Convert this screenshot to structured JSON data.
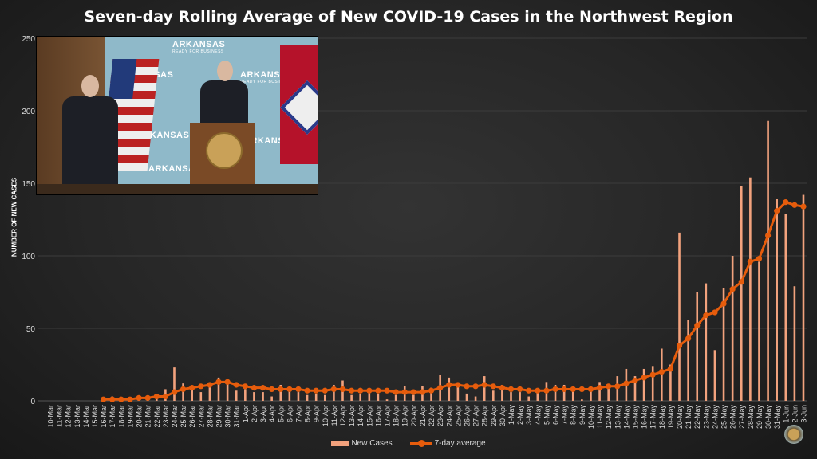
{
  "title": "Seven-day Rolling Average of New COVID-19 Cases in the Northwest Region",
  "video_overlay": {
    "backdrop_brand": "ARKANSAS",
    "backdrop_tagline": "READY FOR BUSINESS"
  },
  "chart_data": {
    "type": "bar+line",
    "title": "Seven-day Rolling Average of New COVID-19 Cases in the Northwest Region",
    "xlabel": "",
    "ylabel": "NUMBER OF NEW CASES",
    "ylim": [
      0,
      250
    ],
    "yticks": [
      0,
      50,
      100,
      150,
      200,
      250
    ],
    "grid": true,
    "legend_position": "bottom",
    "colors": {
      "bars": "#f2a27d",
      "line": "#e65c0c"
    },
    "categories": [
      "10-Mar",
      "11-Mar",
      "12-Mar",
      "13-Mar",
      "14-Mar",
      "15-Mar",
      "16-Mar",
      "17-Mar",
      "18-Mar",
      "19-Mar",
      "20-Mar",
      "21-Mar",
      "22-Mar",
      "23-Mar",
      "24-Mar",
      "25-Mar",
      "26-Mar",
      "27-Mar",
      "28-Mar",
      "29-Mar",
      "30-Mar",
      "31-Mar",
      "1-Apr",
      "2-Apr",
      "3-Apr",
      "4-Apr",
      "5-Apr",
      "6-Apr",
      "7-Apr",
      "8-Apr",
      "9-Apr",
      "10-Apr",
      "11-Apr",
      "12-Apr",
      "13-Apr",
      "14-Apr",
      "15-Apr",
      "16-Apr",
      "17-Apr",
      "18-Apr",
      "19-Apr",
      "20-Apr",
      "21-Apr",
      "22-Apr",
      "23-Apr",
      "24-Apr",
      "25-Apr",
      "26-Apr",
      "27-Apr",
      "28-Apr",
      "29-Apr",
      "30-Apr",
      "1-May",
      "2-May",
      "3-May",
      "4-May",
      "5-May",
      "6-May",
      "7-May",
      "8-May",
      "9-May",
      "10-May",
      "11-May",
      "12-May",
      "13-May",
      "14-May",
      "15-May",
      "16-May",
      "17-May",
      "18-May",
      "19-May",
      "20-May",
      "21-May",
      "22-May",
      "23-May",
      "24-May",
      "25-May",
      "26-May",
      "27-May",
      "28-May",
      "29-May",
      "30-May",
      "31-May",
      "1-Jun",
      "2-Jun",
      "3-Jun"
    ],
    "series": [
      {
        "name": "New Cases",
        "type": "bar",
        "values": [
          0,
          0,
          0,
          0,
          0,
          0,
          2,
          3,
          1,
          1,
          1,
          1,
          2,
          8,
          23,
          12,
          10,
          6,
          10,
          16,
          15,
          7,
          8,
          6,
          6,
          3,
          11,
          9,
          6,
          4,
          5,
          4,
          11,
          14,
          4,
          5,
          8,
          5,
          1,
          4,
          10,
          4,
          10,
          9,
          18,
          16,
          10,
          5,
          3,
          17,
          7,
          11,
          6,
          6,
          3,
          6,
          13,
          11,
          11,
          7,
          1,
          7,
          13,
          11,
          17,
          22,
          17,
          22,
          24,
          36,
          25,
          116,
          56,
          75,
          81,
          35,
          78,
          100,
          148,
          154,
          96,
          193,
          139,
          129,
          79,
          142
        ]
      },
      {
        "name": "7-day average",
        "type": "line",
        "values": [
          null,
          null,
          null,
          null,
          null,
          null,
          1,
          1,
          1,
          1,
          2,
          2,
          3,
          3,
          6,
          8,
          9,
          10,
          11,
          13,
          13,
          11,
          10,
          9,
          9,
          8,
          8,
          8,
          8,
          7,
          7,
          7,
          8,
          8,
          7,
          7,
          7,
          7,
          7,
          6,
          6,
          6,
          6,
          7,
          9,
          11,
          11,
          10,
          10,
          11,
          10,
          9,
          8,
          8,
          7,
          7,
          7,
          8,
          8,
          8,
          8,
          8,
          9,
          10,
          10,
          12,
          14,
          16,
          18,
          20,
          22,
          38,
          43,
          52,
          59,
          61,
          67,
          77,
          82,
          96,
          98,
          114,
          131,
          137,
          135,
          134
        ]
      }
    ]
  }
}
